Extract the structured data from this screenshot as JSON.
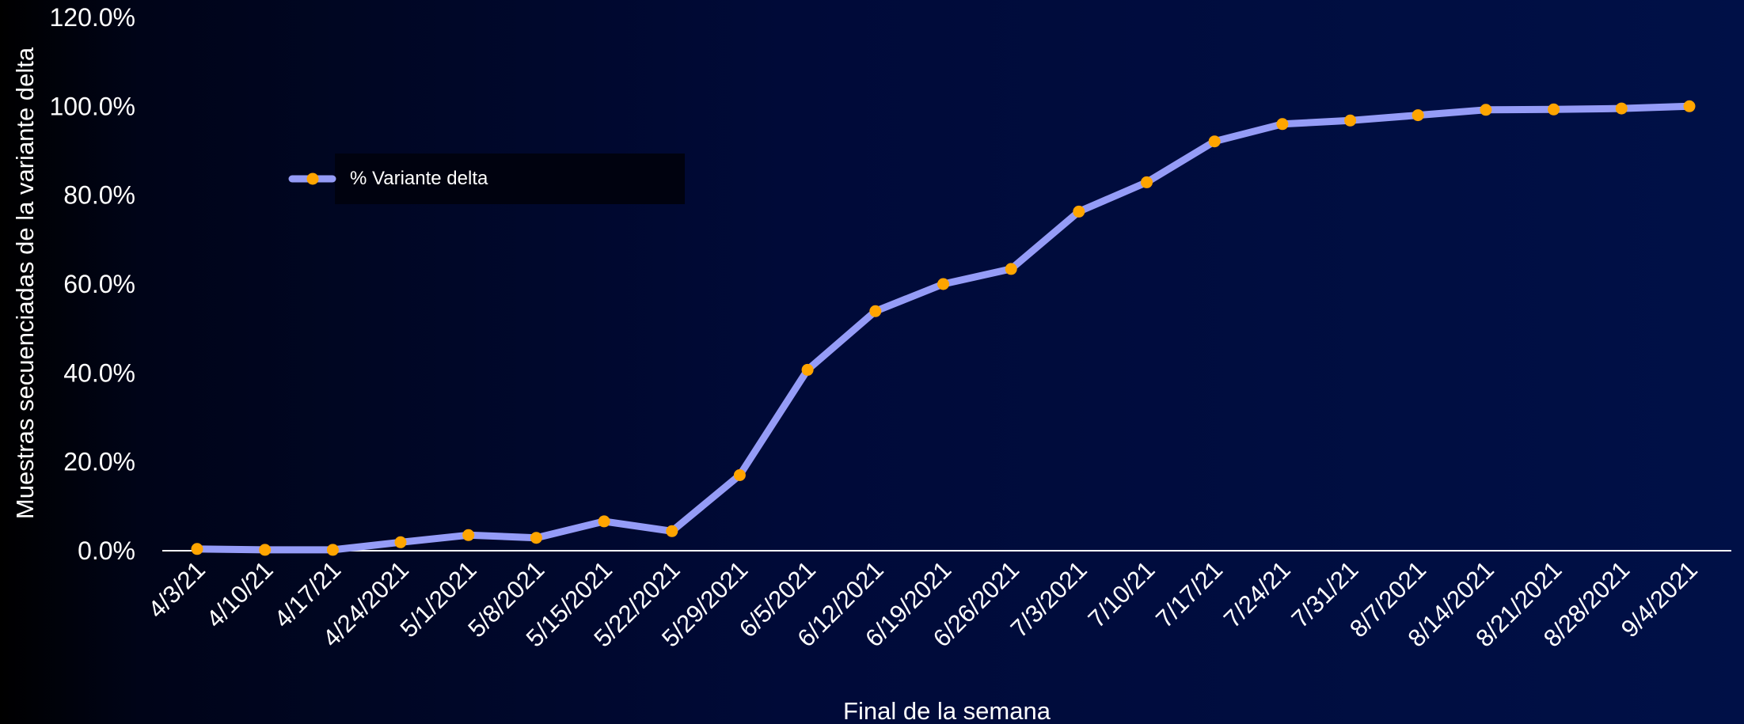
{
  "chart_data": {
    "type": "line",
    "xlabel": "Final de la semana",
    "ylabel": "Muestras secuenciadas de la variante delta",
    "ylim": [
      0,
      120
    ],
    "y_ticks": [
      "0.0%",
      "20.0%",
      "40.0%",
      "60.0%",
      "80.0%",
      "100.0%",
      "120.0%"
    ],
    "y_tick_values": [
      0,
      20,
      40,
      60,
      80,
      100,
      120
    ],
    "categories": [
      "4/3/21",
      "4/10/21",
      "4/17/21",
      "4/24/2021",
      "5/1/2021",
      "5/8/2021",
      "5/15/2021",
      "5/22/2021",
      "5/29/2021",
      "6/5/2021",
      "6/12/2021",
      "6/19/2021",
      "6/26/2021",
      "7/3/2021",
      "7/10/21",
      "7/17/21",
      "7/24/21",
      "7/31/21",
      "8/7/2021",
      "8/14/2021",
      "8/21/2021",
      "8/28/2021",
      "9/4/2021"
    ],
    "series": [
      {
        "name": "% Variante delta",
        "values": [
          0.4,
          0.2,
          0.2,
          1.9,
          3.5,
          2.9,
          6.6,
          4.4,
          17.0,
          40.7,
          53.9,
          60.0,
          63.4,
          76.3,
          82.9,
          92.1,
          96.0,
          96.8,
          98.0,
          99.2,
          99.3,
          99.5,
          100.0
        ]
      }
    ],
    "grid": false,
    "legend_position": "top-left",
    "colors": {
      "line": "#959cf7",
      "marker": "#ffa500",
      "axis": "#ffffff",
      "text": "#ffffff",
      "legend_box": "#00020f"
    }
  }
}
